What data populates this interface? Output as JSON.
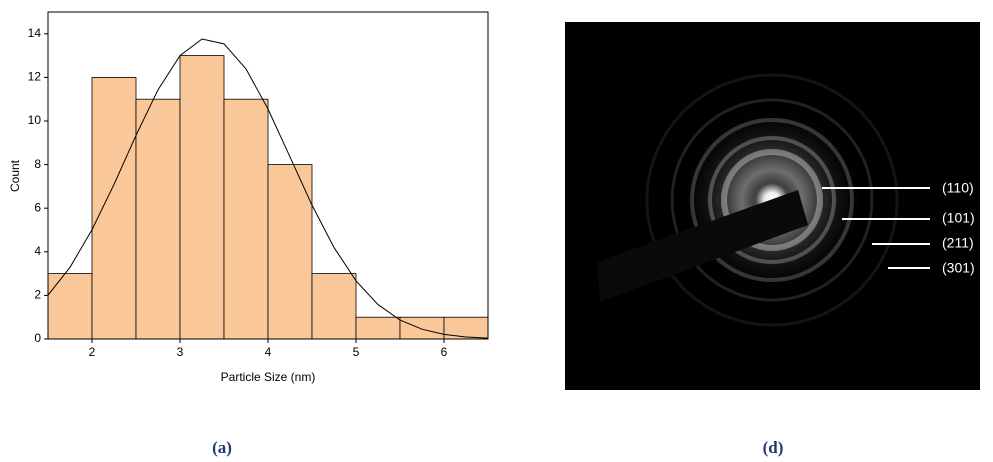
{
  "chart_data": {
    "type": "histogram",
    "xlabel": "Particle Size (nm)",
    "ylabel": "Count",
    "bins": [
      1.5,
      2,
      2.5,
      3,
      3.5,
      4,
      4.5,
      5,
      5.5,
      6,
      6.5
    ],
    "values": [
      3,
      12,
      11,
      13,
      11,
      8,
      3,
      1,
      1,
      1
    ],
    "color": "#fac898",
    "xlim": [
      1.5,
      6.5
    ],
    "xticks": [
      2,
      3,
      4,
      5,
      6
    ],
    "ylim": [
      0,
      15
    ],
    "yticks": [
      0,
      2,
      4,
      6,
      8,
      10,
      12,
      14
    ],
    "fit": {
      "color": "#000000",
      "x": [
        1.5,
        1.75,
        2,
        2.25,
        2.5,
        2.75,
        3,
        3.25,
        3.5,
        3.75,
        4,
        4.25,
        4.5,
        4.75,
        5,
        5.25,
        5.5,
        5.75,
        6,
        6.25,
        6.5
      ],
      "values": [
        2.01,
        3.29,
        5.01,
        7.09,
        9.34,
        11.43,
        13.0,
        13.76,
        13.54,
        12.39,
        10.55,
        8.35,
        6.14,
        4.2,
        2.67,
        1.58,
        0.87,
        0.45,
        0.21,
        0.09,
        0.04
      ]
    }
  },
  "saed": {
    "labels": [
      "(110)",
      "(101)",
      "(211)",
      "(301)"
    ]
  },
  "captions": [
    "(a)",
    "(d)"
  ]
}
